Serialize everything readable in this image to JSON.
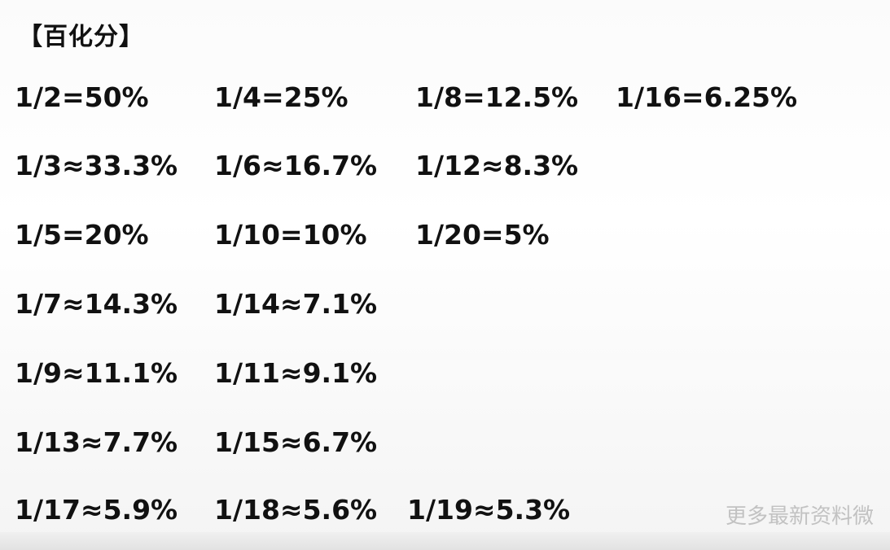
{
  "title": "【百化分】",
  "rows": [
    [
      "1/2=50%",
      "1/4=25%",
      "1/8=12.5%",
      "1/16=6.25%"
    ],
    [
      "1/3≈33.3%",
      "1/6≈16.7%",
      "1/12≈8.3%"
    ],
    [
      "1/5=20%",
      "1/10=10%",
      "1/20=5%"
    ],
    [
      "1/7≈14.3%",
      "1/14≈7.1%"
    ],
    [
      "1/9≈11.1%",
      "1/11≈9.1%"
    ],
    [
      "1/13≈7.7%",
      "1/15≈6.7%"
    ],
    [
      "1/17≈5.9%",
      "1/18≈5.6%",
      "1/19≈5.3%"
    ]
  ],
  "watermark": "更多最新资料微"
}
